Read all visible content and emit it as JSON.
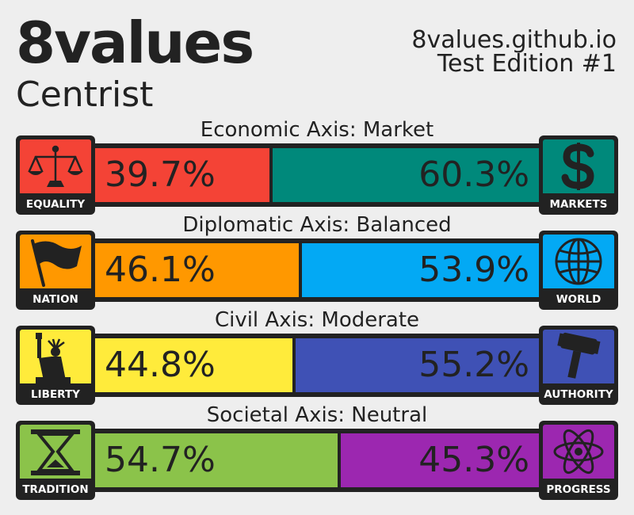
{
  "header": {
    "title": "8values",
    "ideology": "Centrist",
    "site": "8values.github.io",
    "edition": "Test Edition #1"
  },
  "axes": [
    {
      "title": "Economic Axis: Market",
      "left": {
        "label": "EQUALITY",
        "percent": "39.7%",
        "value": 39.7,
        "color": "#f44336",
        "icon": "scales-icon"
      },
      "right": {
        "label": "MARKETS",
        "percent": "60.3%",
        "value": 60.3,
        "color": "#00897b",
        "icon": "dollar-icon"
      }
    },
    {
      "title": "Diplomatic Axis: Balanced",
      "left": {
        "label": "NATION",
        "percent": "46.1%",
        "value": 46.1,
        "color": "#ff9800",
        "icon": "flag-icon"
      },
      "right": {
        "label": "WORLD",
        "percent": "53.9%",
        "value": 53.9,
        "color": "#03a9f4",
        "icon": "globe-icon"
      }
    },
    {
      "title": "Civil Axis: Moderate",
      "left": {
        "label": "LIBERTY",
        "percent": "44.8%",
        "value": 44.8,
        "color": "#ffeb3b",
        "icon": "statue-of-liberty-icon"
      },
      "right": {
        "label": "AUTHORITY",
        "percent": "55.2%",
        "value": 55.2,
        "color": "#3f51b5",
        "icon": "gavel-icon"
      }
    },
    {
      "title": "Societal Axis: Neutral",
      "left": {
        "label": "TRADITION",
        "percent": "54.7%",
        "value": 54.7,
        "color": "#8bc34a",
        "icon": "hourglass-icon"
      },
      "right": {
        "label": "PROGRESS",
        "percent": "45.3%",
        "value": 45.3,
        "color": "#9c27b0",
        "icon": "atom-icon"
      }
    }
  ]
}
